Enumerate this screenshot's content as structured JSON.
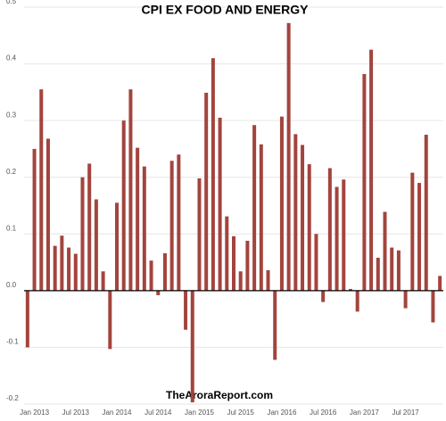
{
  "chart_data": {
    "type": "bar",
    "title": "CPI EX FOOD AND ENERGY",
    "footer": "TheAroraReport.com",
    "categories": [
      null,
      "Jan 2013",
      null,
      null,
      null,
      null,
      null,
      "Jul 2013",
      null,
      null,
      null,
      null,
      null,
      "Jan 2014",
      null,
      null,
      null,
      null,
      null,
      "Jul 2014",
      null,
      null,
      null,
      null,
      null,
      "Jan 2015",
      null,
      null,
      null,
      null,
      null,
      "Jul 2015",
      null,
      null,
      null,
      null,
      null,
      "Jan 2016",
      null,
      null,
      null,
      null,
      null,
      "Jul 2016",
      null,
      null,
      null,
      null,
      null,
      "Jan 2017",
      null,
      null,
      null,
      null,
      null,
      "Jul 2017",
      null,
      null,
      null,
      null,
      null
    ],
    "values": [
      -0.1,
      0.25,
      0.355,
      0.268,
      0.079,
      0.097,
      0.076,
      0.065,
      0.2,
      0.224,
      0.161,
      0.034,
      -0.103,
      0.155,
      0.3,
      0.355,
      0.252,
      0.219,
      0.053,
      -0.008,
      0.066,
      0.229,
      0.24,
      -0.069,
      -0.197,
      0.198,
      0.349,
      0.41,
      0.305,
      0.131,
      0.096,
      0.034,
      0.088,
      0.292,
      0.258,
      0.036,
      -0.122,
      0.307,
      0.472,
      0.276,
      0.257,
      0.223,
      0.1,
      -0.02,
      0.216,
      0.183,
      0.196,
      0.003,
      -0.037,
      0.382,
      0.425,
      0.058,
      0.139,
      0.076,
      0.071,
      -0.031,
      0.208,
      0.19,
      0.275,
      -0.056,
      0.026
    ],
    "color": "#a3443e",
    "ylim": [
      -0.2,
      0.5
    ],
    "yticks": [
      -0.2,
      -0.1,
      {
        "value": 0,
        "label": "0.0"
      },
      0.1,
      0.2,
      0.3,
      0.4,
      0.5
    ],
    "grid": true
  }
}
